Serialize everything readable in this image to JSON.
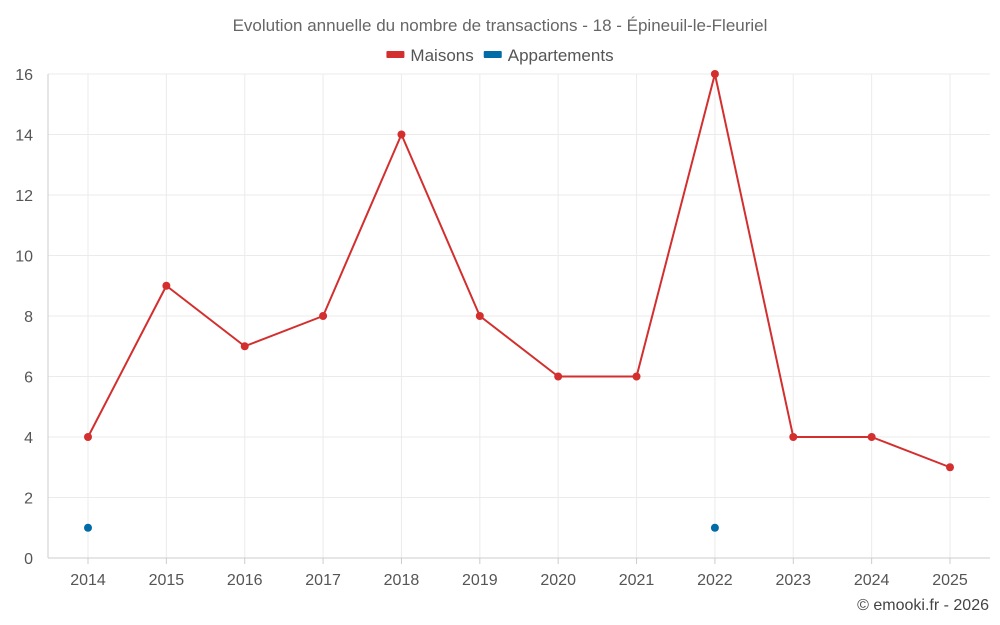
{
  "chart_data": {
    "type": "line",
    "title": "Evolution annuelle du nombre de transactions - 18 - Épineuil-le-Fleuriel",
    "categories": [
      "2014",
      "2015",
      "2016",
      "2017",
      "2018",
      "2019",
      "2020",
      "2021",
      "2022",
      "2023",
      "2024",
      "2025"
    ],
    "series": [
      {
        "name": "Maisons",
        "color": "#d32f2f",
        "values": [
          4,
          9,
          7,
          8,
          14,
          8,
          6,
          6,
          16,
          4,
          4,
          3
        ],
        "show_line": true
      },
      {
        "name": "Appartements",
        "color": "#006ba6",
        "values": [
          1,
          null,
          null,
          null,
          null,
          null,
          null,
          null,
          1,
          null,
          null,
          null
        ],
        "show_line": false
      }
    ],
    "ylim": [
      0,
      16
    ],
    "yticks": [
      "0",
      "2",
      "4",
      "6",
      "8",
      "10",
      "12",
      "14",
      "16"
    ],
    "xlabel": "",
    "ylabel": "",
    "grid": true,
    "legend_position": "top-center"
  },
  "credit": "© emooki.fr - 2026"
}
